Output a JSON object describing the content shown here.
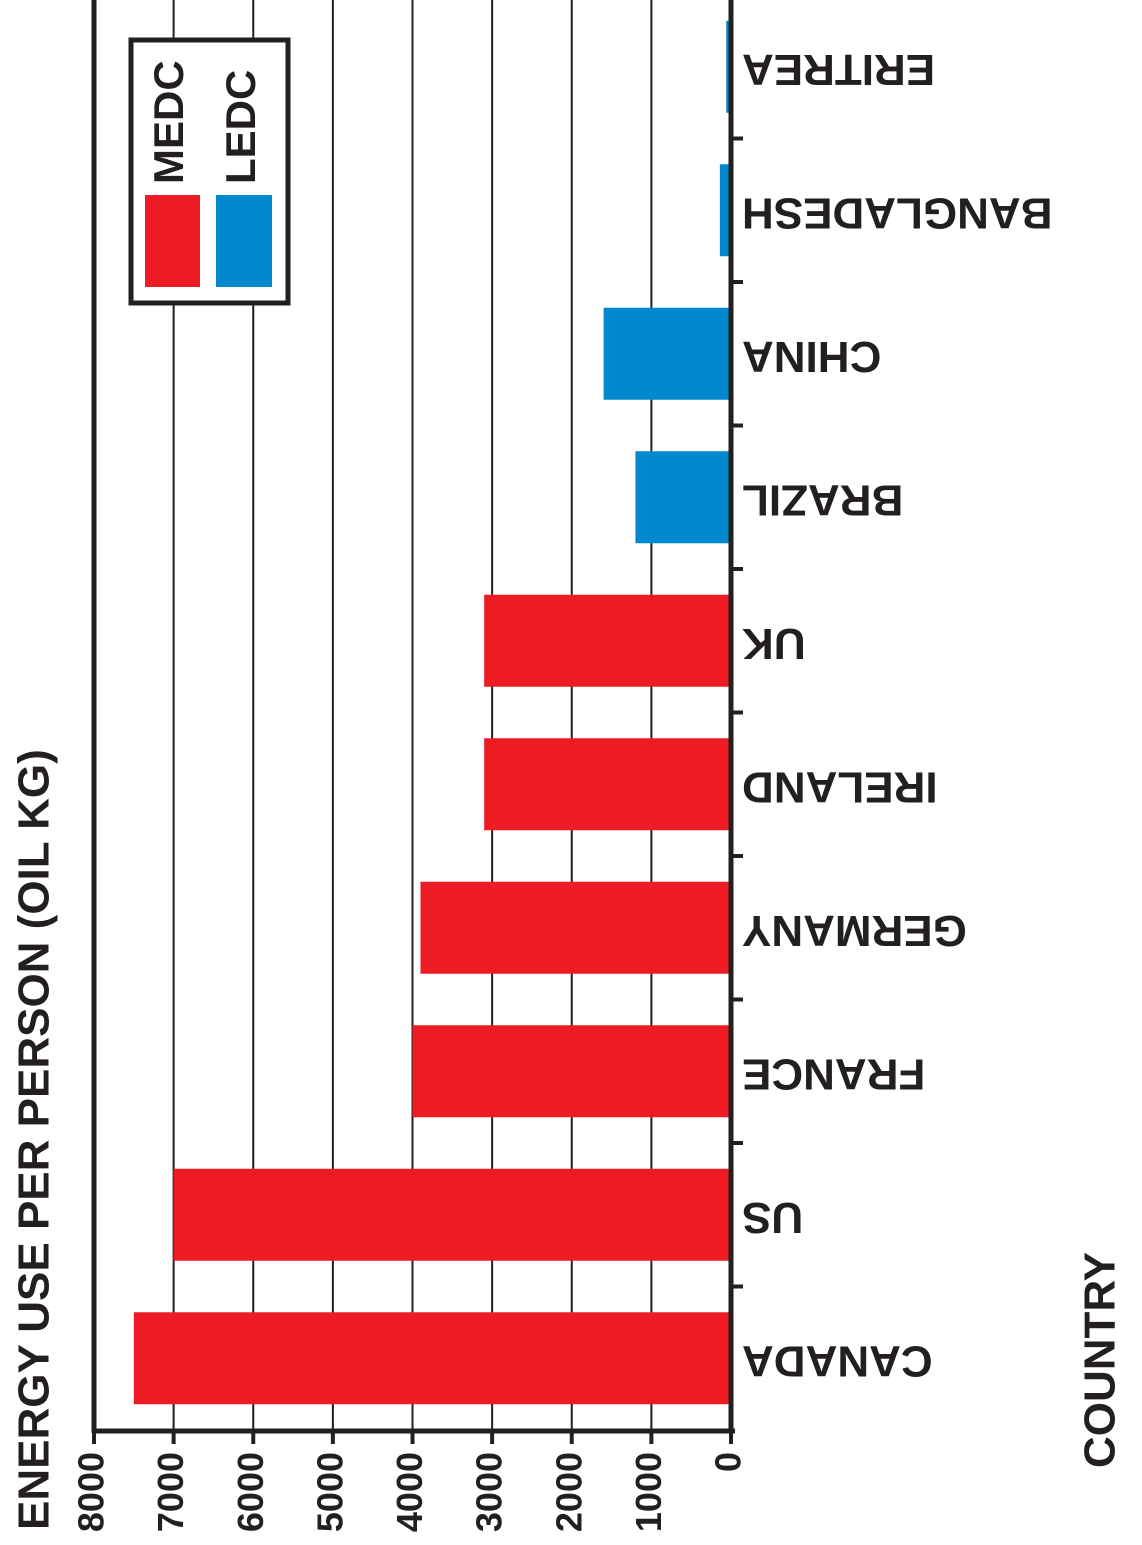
{
  "chart_data": {
    "type": "bar",
    "orientation": "horizontal-rotated",
    "title": "",
    "ylabel": "ENERGY USE PER PERSON (OIL KG)",
    "xlabel": "COUNTRY",
    "ylim": [
      0,
      8000
    ],
    "ticks": [
      0,
      1000,
      2000,
      3000,
      4000,
      5000,
      6000,
      7000,
      8000
    ],
    "tick_labels": [
      "0",
      "1000",
      "2000",
      "3000",
      "4000",
      "5000",
      "6000",
      "7000",
      "8000"
    ],
    "grid": true,
    "categories": [
      "CANADA",
      "US",
      "FRANCE",
      "GERMANY",
      "IRELAND",
      "UK",
      "BRAZIL",
      "CHINA",
      "BANGLADESH",
      "ERITREA"
    ],
    "values": [
      7500,
      7000,
      4000,
      3900,
      3100,
      3100,
      1200,
      1600,
      140,
      60
    ],
    "groups": [
      "MEDC",
      "MEDC",
      "MEDC",
      "MEDC",
      "MEDC",
      "MEDC",
      "LEDC",
      "LEDC",
      "LEDC",
      "LEDC"
    ],
    "legend": {
      "position": "top-left",
      "entries": [
        {
          "name": "MEDC",
          "color": "#ed1c24"
        },
        {
          "name": "LEDC",
          "color": "#0089cf"
        }
      ]
    }
  }
}
